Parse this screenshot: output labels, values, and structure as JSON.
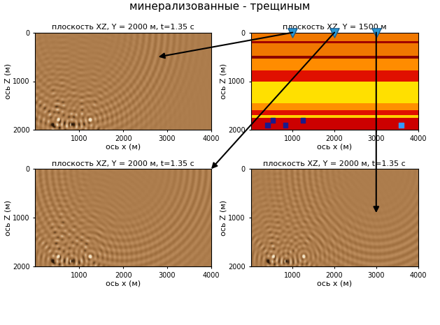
{
  "caption": "минерализованные - трещиным",
  "chart_data": [
    {
      "type": "wavefield",
      "title": "плоскость XZ, Y = 2000 м, t=1.35 с",
      "x_label": "ось x (м)",
      "y_label": "ось Z (м)",
      "xlim": [
        0,
        4000
      ],
      "ylim": [
        2000,
        0
      ],
      "xticks": [
        1000,
        2000,
        3000,
        4000
      ],
      "yticks": [
        0,
        1000,
        2000
      ],
      "source_x": 1000
    },
    {
      "type": "model",
      "title": "плоскость XZ, Y = 1500 м",
      "x_label": "ось x (м)",
      "y_label": "ось Z (м)",
      "xlim": [
        0,
        4000
      ],
      "ylim": [
        2000,
        0
      ],
      "xticks": [
        1000,
        2000,
        3000,
        4000
      ],
      "yticks": [
        0,
        1000,
        2000
      ],
      "layers": [
        {
          "top": 0,
          "bottom": 180,
          "color": "#f07800"
        },
        {
          "top": 180,
          "bottom": 220,
          "color": "#a00000"
        },
        {
          "top": 220,
          "bottom": 480,
          "color": "#f07800"
        },
        {
          "top": 480,
          "bottom": 540,
          "color": "#8b0000"
        },
        {
          "top": 540,
          "bottom": 780,
          "color": "#ff8c00"
        },
        {
          "top": 780,
          "bottom": 1000,
          "color": "#e01000"
        },
        {
          "top": 1000,
          "bottom": 1450,
          "color": "#ffe000"
        },
        {
          "top": 1450,
          "bottom": 1600,
          "color": "#ff9000"
        },
        {
          "top": 1600,
          "bottom": 1700,
          "color": "#e01000"
        },
        {
          "top": 1700,
          "bottom": 1750,
          "color": "#ffd000"
        },
        {
          "top": 1750,
          "bottom": 2000,
          "color": "#cc0000"
        }
      ],
      "inclusions": {
        "x": [
          400,
          530,
          830,
          1250,
          3600
        ],
        "z": [
          1900,
          1800,
          1900,
          1800,
          1900
        ],
        "colors": [
          "#1a1a8c",
          "#1a1a8c",
          "#1a1a8c",
          "#1a1a8c",
          "#3399ff"
        ],
        "marker": "square"
      },
      "sources": {
        "x": [
          1000,
          2000,
          3000
        ],
        "z": [
          0,
          0,
          0
        ],
        "color": "#2a9ad8",
        "marker": "triangle_down"
      }
    },
    {
      "type": "wavefield",
      "title": "плоскость XZ, Y = 2000 м, t=1.35 с",
      "x_label": "ось x (м)",
      "y_label": "ось Z (м)",
      "xlim": [
        0,
        4000
      ],
      "ylim": [
        2000,
        0
      ],
      "xticks": [
        1000,
        2000,
        3000,
        4000
      ],
      "yticks": [
        0,
        1000,
        2000
      ],
      "source_x": 2000
    },
    {
      "type": "wavefield",
      "title": "плоскость XZ, Y = 2000 м, t=1.35 с",
      "x_label": "ось x (м)",
      "y_label": "ось Z (м)",
      "xlim": [
        0,
        4000
      ],
      "ylim": [
        2000,
        0
      ],
      "xticks": [
        1000,
        2000,
        3000,
        4000
      ],
      "yticks": [
        0,
        1000,
        2000
      ],
      "source_x": 3000
    }
  ]
}
